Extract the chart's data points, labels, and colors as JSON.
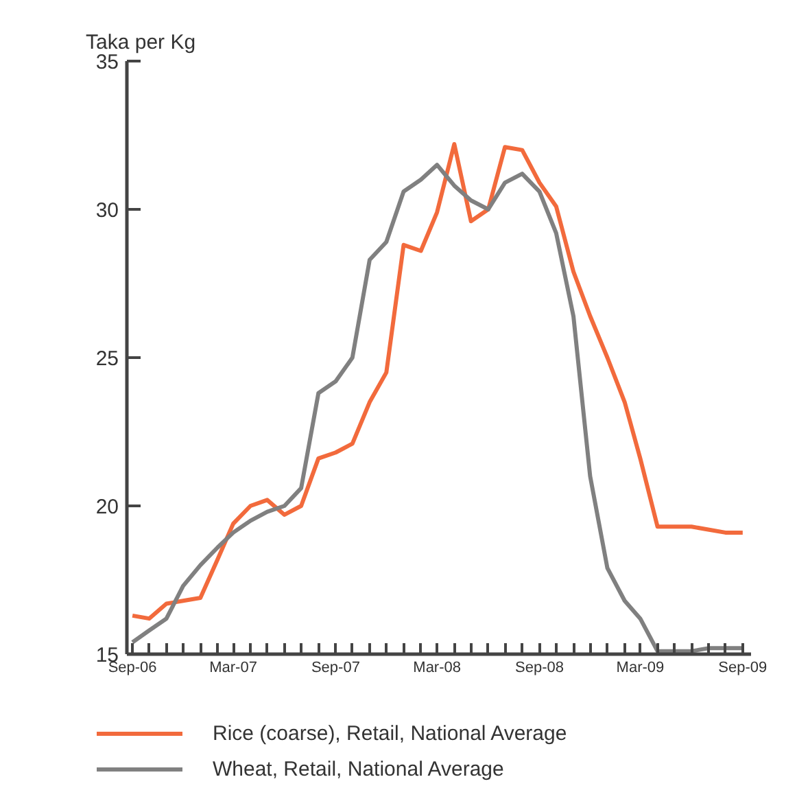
{
  "chart_data": {
    "type": "line",
    "ylabel": "Taka per Kg",
    "x": [
      "2006-09",
      "2006-10",
      "2006-11",
      "2006-12",
      "2007-01",
      "2007-02",
      "2007-03",
      "2007-04",
      "2007-05",
      "2007-06",
      "2007-07",
      "2007-08",
      "2007-09",
      "2007-10",
      "2007-11",
      "2007-12",
      "2008-01",
      "2008-02",
      "2008-03",
      "2008-04",
      "2008-05",
      "2008-06",
      "2008-07",
      "2008-08",
      "2008-09",
      "2008-10",
      "2008-11",
      "2008-12",
      "2009-01",
      "2009-02",
      "2009-03",
      "2009-04",
      "2009-05",
      "2009-06",
      "2009-07",
      "2009-08",
      "2009-09"
    ],
    "series": [
      {
        "name": "Rice (coarse), Retail, National Average",
        "color": "#f26a3c",
        "values": [
          16.3,
          16.2,
          16.7,
          16.8,
          16.9,
          18.2,
          19.4,
          20.0,
          20.2,
          19.7,
          20.0,
          21.6,
          21.8,
          22.1,
          23.5,
          24.5,
          28.8,
          28.6,
          29.9,
          32.2,
          29.6,
          30.0,
          32.1,
          32.0,
          30.9,
          30.1,
          27.9,
          26.4,
          25.0,
          23.5,
          21.6,
          19.3,
          19.3,
          19.3,
          19.2,
          19.1,
          19.1
        ]
      },
      {
        "name": "Wheat, Retail, National Average",
        "color": "#808080",
        "values": [
          15.4,
          15.8,
          16.2,
          17.3,
          18.0,
          18.6,
          19.1,
          19.5,
          19.8,
          20.0,
          20.6,
          23.8,
          24.2,
          25.0,
          28.3,
          28.9,
          30.6,
          31.0,
          31.5,
          30.8,
          30.3,
          30.0,
          30.9,
          31.2,
          30.6,
          29.2,
          26.4,
          21.0,
          17.9,
          16.8,
          16.2,
          15.1,
          15.1,
          15.1,
          15.2,
          15.2,
          15.2
        ]
      }
    ],
    "xlim": [
      "2006-08-22",
      "2009-09-16"
    ],
    "ylim": [
      15,
      35
    ],
    "yticks": [
      15,
      20,
      25,
      30,
      35
    ],
    "xticks": [
      {
        "value": "2006-09",
        "label": "Sep-06"
      },
      {
        "value": "2006-10",
        "label": null
      },
      {
        "value": "2006-11",
        "label": null
      },
      {
        "value": "2006-12",
        "label": null
      },
      {
        "value": "2007-01",
        "label": null
      },
      {
        "value": "2007-02",
        "label": null
      },
      {
        "value": "2007-03",
        "label": "Mar-07"
      },
      {
        "value": "2007-04",
        "label": null
      },
      {
        "value": "2007-05",
        "label": null
      },
      {
        "value": "2007-06",
        "label": null
      },
      {
        "value": "2007-07",
        "label": null
      },
      {
        "value": "2007-08",
        "label": null
      },
      {
        "value": "2007-09",
        "label": "Sep-07"
      },
      {
        "value": "2007-10",
        "label": null
      },
      {
        "value": "2007-11",
        "label": null
      },
      {
        "value": "2007-12",
        "label": null
      },
      {
        "value": "2008-01",
        "label": null
      },
      {
        "value": "2008-02",
        "label": null
      },
      {
        "value": "2008-03",
        "label": "Mar-08"
      },
      {
        "value": "2008-04",
        "label": null
      },
      {
        "value": "2008-05",
        "label": null
      },
      {
        "value": "2008-06",
        "label": null
      },
      {
        "value": "2008-07",
        "label": null
      },
      {
        "value": "2008-08",
        "label": null
      },
      {
        "value": "2008-09",
        "label": "Sep-08"
      },
      {
        "value": "2008-10",
        "label": null
      },
      {
        "value": "2008-11",
        "label": null
      },
      {
        "value": "2008-12",
        "label": null
      },
      {
        "value": "2009-01",
        "label": null
      },
      {
        "value": "2009-02",
        "label": null
      },
      {
        "value": "2009-03",
        "label": "Mar-09"
      },
      {
        "value": "2009-04",
        "label": null
      },
      {
        "value": "2009-05",
        "label": null
      },
      {
        "value": "2009-06",
        "label": null
      },
      {
        "value": "2009-07",
        "label": null
      },
      {
        "value": "2009-08",
        "label": null
      },
      {
        "value": "2009-09",
        "label": "Sep-09"
      }
    ],
    "grid": false,
    "legend": "bottom",
    "line_style": "solid"
  }
}
